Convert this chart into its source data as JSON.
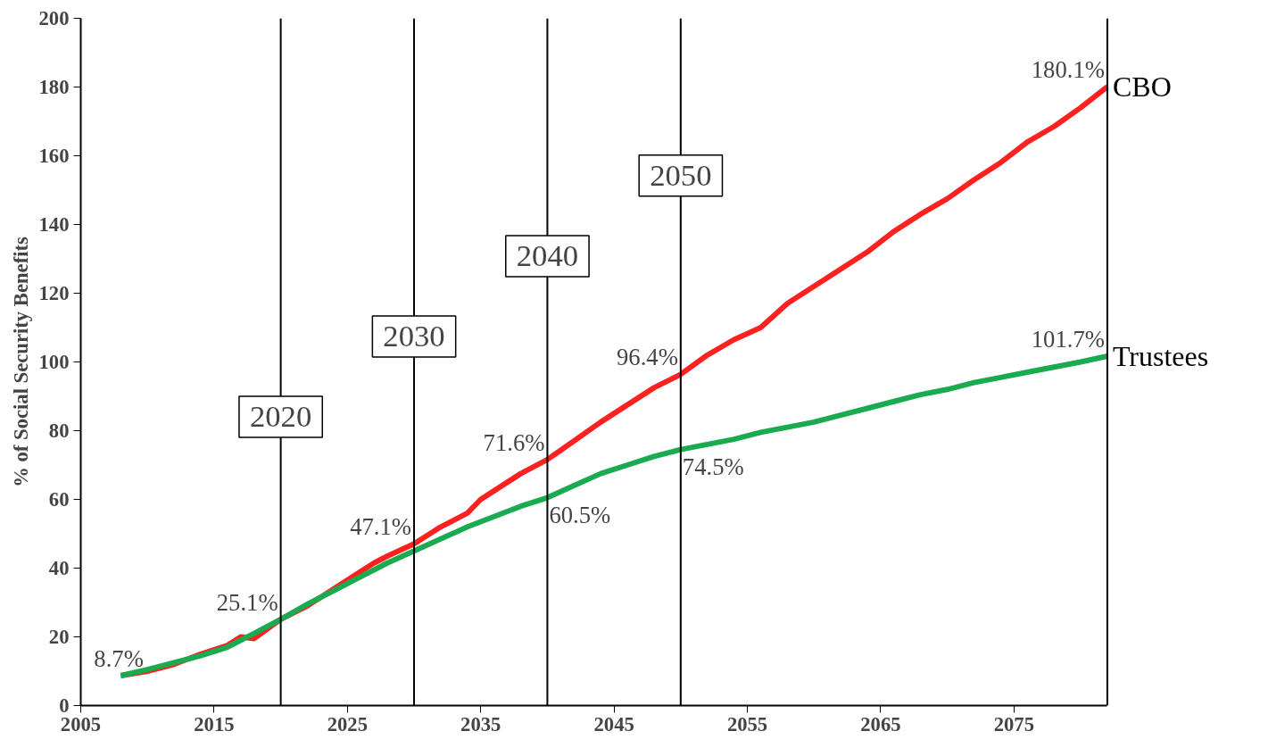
{
  "chart_data": {
    "type": "line",
    "ylabel": "% of Social Security Benefits",
    "xlim": [
      2005,
      2082
    ],
    "ylim": [
      0,
      200
    ],
    "xticks": [
      2005,
      2015,
      2025,
      2035,
      2045,
      2055,
      2065,
      2075
    ],
    "yticks": [
      0,
      20,
      40,
      60,
      80,
      100,
      120,
      140,
      160,
      180,
      200
    ],
    "grid": false,
    "legend": false,
    "marker": "none",
    "line_style": "solid",
    "series": [
      {
        "name": "CBO",
        "color": "#ff2020",
        "x": [
          2008,
          2010,
          2012,
          2014,
          2016,
          2017,
          2018,
          2020,
          2022,
          2024,
          2026,
          2027,
          2028,
          2030,
          2032,
          2034,
          2035,
          2036,
          2038,
          2040,
          2042,
          2044,
          2046,
          2048,
          2050,
          2052,
          2054,
          2056,
          2058,
          2060,
          2062,
          2064,
          2066,
          2068,
          2070,
          2072,
          2074,
          2076,
          2078,
          2080,
          2082
        ],
        "values": [
          8.7,
          10,
          12,
          15,
          17.5,
          20,
          19.5,
          25.1,
          29,
          34,
          39,
          41.5,
          43.5,
          47.1,
          52,
          56,
          60,
          62.5,
          67.5,
          71.6,
          77,
          82.5,
          87.5,
          92.5,
          96.4,
          102,
          106.5,
          110,
          117,
          122,
          127,
          132,
          138,
          143,
          147.5,
          153,
          158,
          164,
          168.5,
          174,
          180.1
        ]
      },
      {
        "name": "Trustees",
        "color": "#1aaa50",
        "x": [
          2008,
          2010,
          2012,
          2014,
          2016,
          2018,
          2020,
          2022,
          2024,
          2026,
          2028,
          2030,
          2032,
          2034,
          2036,
          2038,
          2040,
          2042,
          2044,
          2046,
          2048,
          2050,
          2052,
          2054,
          2056,
          2058,
          2060,
          2062,
          2064,
          2066,
          2068,
          2070,
          2072,
          2074,
          2076,
          2078,
          2080,
          2082
        ],
        "values": [
          8.7,
          10.5,
          12.5,
          14.5,
          17,
          21,
          25.1,
          29.5,
          33.5,
          37.5,
          41.5,
          45,
          48.5,
          52,
          55,
          58,
          60.5,
          64,
          67.5,
          70,
          72.5,
          74.5,
          76,
          77.5,
          79.5,
          81,
          82.5,
          84.5,
          86.5,
          88.5,
          90.5,
          92,
          94,
          95.5,
          97,
          98.5,
          100,
          101.7
        ]
      }
    ],
    "ref_lines": [
      {
        "axis": "x",
        "value": 2020,
        "label": "2020",
        "color": "#000000"
      },
      {
        "axis": "x",
        "value": 2030,
        "label": "2030",
        "color": "#000000"
      },
      {
        "axis": "x",
        "value": 2040,
        "label": "2040",
        "color": "#000000"
      },
      {
        "axis": "x",
        "value": 2050,
        "label": "2050",
        "color": "#000000"
      }
    ],
    "annotations": [
      {
        "text": "8.7%",
        "x": 2008,
        "y": 8.7
      },
      {
        "text": "25.1%",
        "x": 2020,
        "y": 25.1
      },
      {
        "text": "47.1%",
        "x": 2030,
        "y": 47.1
      },
      {
        "text": "71.6%",
        "x": 2040,
        "y": 71.6
      },
      {
        "text": "96.4%",
        "x": 2050,
        "y": 96.4
      },
      {
        "text": "180.1%",
        "x": 2082,
        "y": 180.1
      },
      {
        "text": "60.5%",
        "x": 2040,
        "y": 60.5
      },
      {
        "text": "74.5%",
        "x": 2050,
        "y": 74.5
      },
      {
        "text": "101.7%",
        "x": 2082,
        "y": 101.7
      }
    ]
  }
}
